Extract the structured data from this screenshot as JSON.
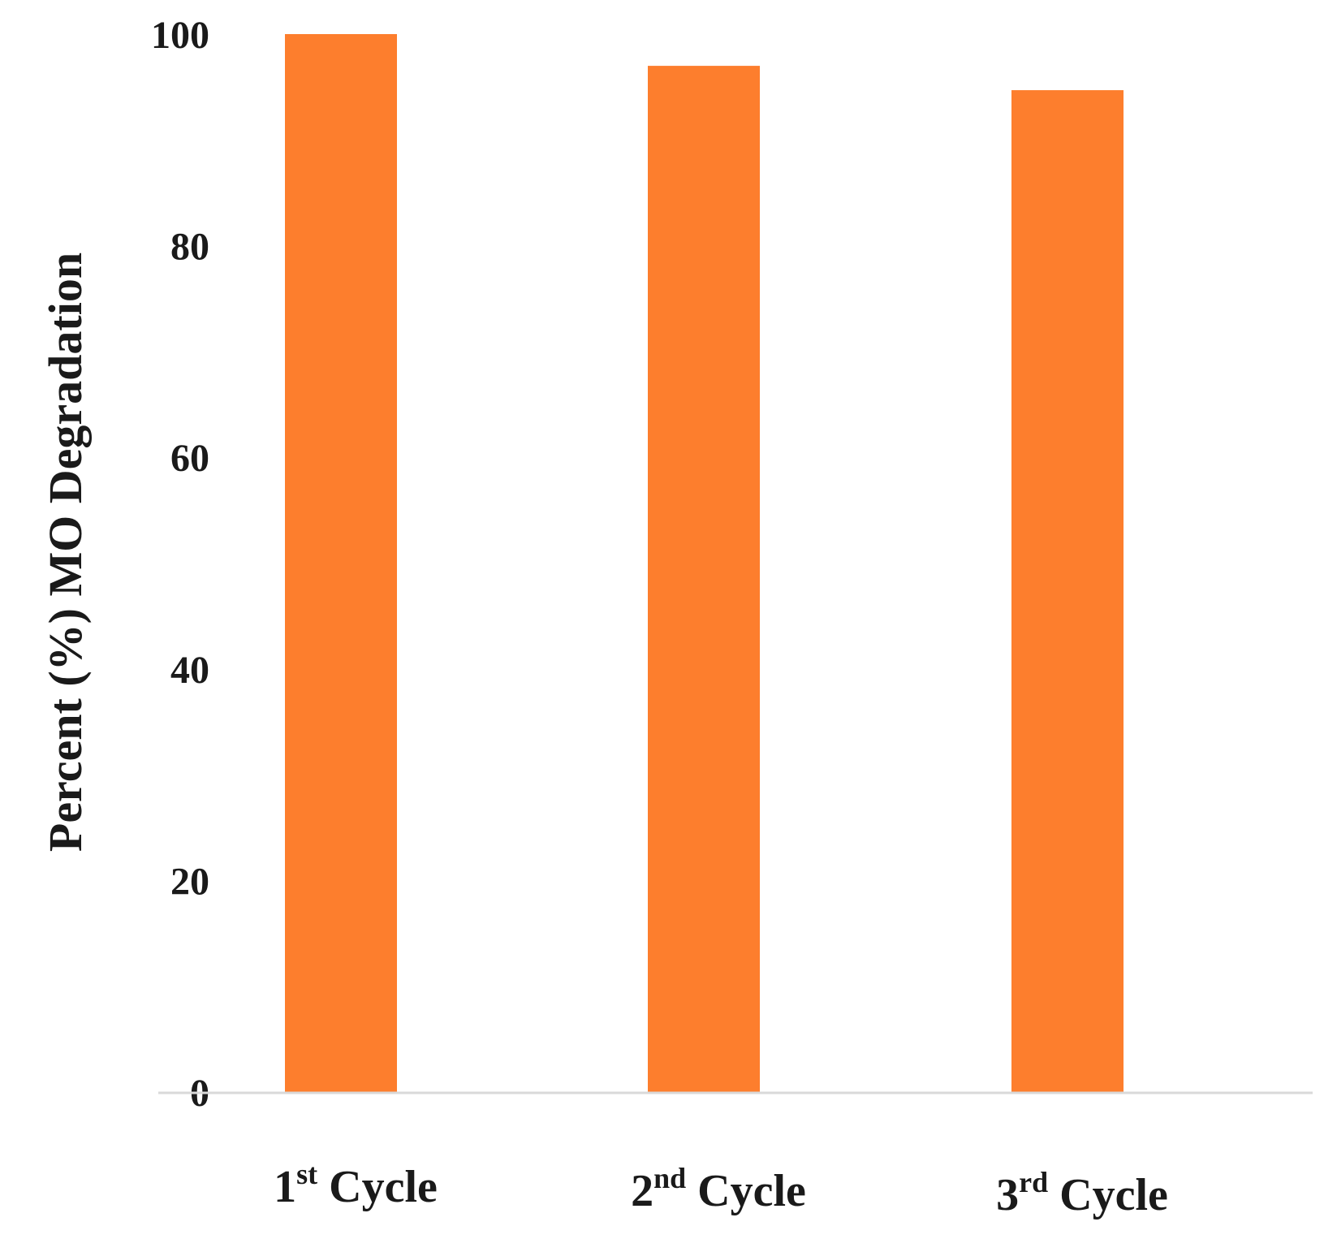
{
  "chart_data": {
    "type": "bar",
    "title": "",
    "xlabel": "",
    "ylabel": "Percent (%) MO Degradation",
    "ylim": [
      0,
      100
    ],
    "yticks": [
      "0",
      "20",
      "40",
      "60",
      "80",
      "100"
    ],
    "grid": false,
    "categories": [
      {
        "num": "1",
        "sup": "st",
        "text": " Cycle"
      },
      {
        "num": "2",
        "sup": "nd",
        "text": " Cycle"
      },
      {
        "num": "3",
        "sup": "rd",
        "text": " Cycle"
      }
    ],
    "values": [
      100,
      97,
      94.7
    ],
    "bar_color": "#FD7E2D",
    "axis_color": "#D9D9D9"
  }
}
